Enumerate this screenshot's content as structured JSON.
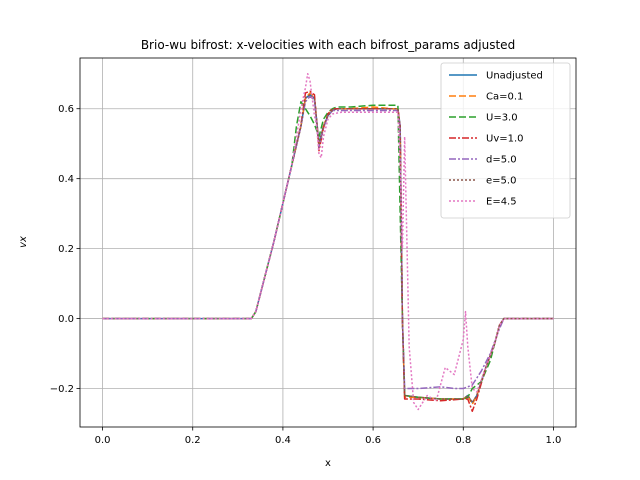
{
  "chart_data": {
    "type": "line",
    "title": "Brio-wu bifrost: x-velocities with each bifrost_params adjusted",
    "xlabel": "x",
    "ylabel": "vx",
    "xlim": [
      -0.05,
      1.05
    ],
    "ylim": [
      -0.31,
      0.745
    ],
    "xticks": [
      0.0,
      0.2,
      0.4,
      0.6,
      0.8,
      1.0
    ],
    "xtick_labels": [
      "0.0",
      "0.2",
      "0.4",
      "0.6",
      "0.8",
      "1.0"
    ],
    "yticks": [
      -0.2,
      0.0,
      0.2,
      0.4,
      0.6
    ],
    "ytick_labels": [
      "−0.2",
      "0.0",
      "0.2",
      "0.4",
      "0.6"
    ],
    "grid": true,
    "legend_position": "top-right",
    "series": [
      {
        "name": "Unadjusted",
        "color": "#1f77b4",
        "dash": "solid",
        "x": [
          0.0,
          0.33,
          0.34,
          0.36,
          0.38,
          0.4,
          0.42,
          0.44,
          0.45,
          0.46,
          0.47,
          0.48,
          0.49,
          0.5,
          0.51,
          0.52,
          0.55,
          0.6,
          0.64,
          0.655,
          0.66,
          0.665,
          0.67,
          0.7,
          0.75,
          0.8,
          0.81,
          0.82,
          0.83,
          0.85,
          0.87,
          0.88,
          0.89,
          1.0
        ],
        "y": [
          0.0,
          0.0,
          0.02,
          0.12,
          0.22,
          0.33,
          0.44,
          0.55,
          0.63,
          0.64,
          0.63,
          0.5,
          0.55,
          0.58,
          0.595,
          0.6,
          0.6,
          0.6,
          0.6,
          0.6,
          0.55,
          0.0,
          -0.22,
          -0.225,
          -0.23,
          -0.23,
          -0.22,
          -0.24,
          -0.22,
          -0.14,
          -0.07,
          -0.02,
          0.0,
          0.0
        ]
      },
      {
        "name": "Ca=0.1",
        "color": "#ff7f0e",
        "dash": "7,3",
        "x": [
          0.0,
          0.33,
          0.34,
          0.36,
          0.38,
          0.4,
          0.42,
          0.44,
          0.45,
          0.46,
          0.47,
          0.48,
          0.49,
          0.5,
          0.51,
          0.52,
          0.55,
          0.6,
          0.64,
          0.655,
          0.66,
          0.665,
          0.67,
          0.7,
          0.75,
          0.8,
          0.81,
          0.82,
          0.83,
          0.85,
          0.87,
          0.88,
          0.89,
          1.0
        ],
        "y": [
          0.0,
          0.0,
          0.02,
          0.12,
          0.22,
          0.33,
          0.44,
          0.55,
          0.63,
          0.645,
          0.635,
          0.49,
          0.55,
          0.585,
          0.6,
          0.6,
          0.6,
          0.605,
          0.6,
          0.6,
          0.55,
          0.0,
          -0.225,
          -0.225,
          -0.23,
          -0.23,
          -0.22,
          -0.245,
          -0.22,
          -0.14,
          -0.07,
          -0.02,
          0.0,
          0.0
        ]
      },
      {
        "name": "U=3.0",
        "color": "#2ca02c",
        "dash": "7,3",
        "x": [
          0.0,
          0.33,
          0.34,
          0.36,
          0.38,
          0.4,
          0.42,
          0.43,
          0.44,
          0.45,
          0.46,
          0.47,
          0.48,
          0.49,
          0.5,
          0.51,
          0.52,
          0.55,
          0.6,
          0.64,
          0.655,
          0.665,
          0.67,
          0.7,
          0.75,
          0.78,
          0.8,
          0.81,
          0.82,
          0.84,
          0.86,
          0.88,
          0.89,
          1.0
        ],
        "y": [
          0.0,
          0.0,
          0.02,
          0.12,
          0.22,
          0.33,
          0.44,
          0.55,
          0.62,
          0.6,
          0.58,
          0.555,
          0.52,
          0.57,
          0.59,
          0.6,
          0.605,
          0.605,
          0.61,
          0.61,
          0.61,
          0.0,
          -0.22,
          -0.225,
          -0.23,
          -0.23,
          -0.23,
          -0.225,
          -0.2,
          -0.18,
          -0.12,
          -0.02,
          0.0,
          0.0
        ]
      },
      {
        "name": "Uv=1.0",
        "color": "#d62728",
        "dash": "7,2,2,2",
        "x": [
          0.0,
          0.33,
          0.34,
          0.36,
          0.38,
          0.4,
          0.42,
          0.44,
          0.45,
          0.46,
          0.47,
          0.48,
          0.49,
          0.5,
          0.51,
          0.52,
          0.55,
          0.6,
          0.64,
          0.655,
          0.66,
          0.665,
          0.67,
          0.7,
          0.75,
          0.8,
          0.81,
          0.82,
          0.83,
          0.85,
          0.87,
          0.88,
          0.89,
          1.0
        ],
        "y": [
          0.0,
          0.0,
          0.02,
          0.12,
          0.22,
          0.33,
          0.44,
          0.555,
          0.645,
          0.65,
          0.64,
          0.48,
          0.545,
          0.585,
          0.6,
          0.6,
          0.6,
          0.6,
          0.6,
          0.6,
          0.55,
          0.0,
          -0.23,
          -0.23,
          -0.235,
          -0.23,
          -0.23,
          -0.265,
          -0.23,
          -0.14,
          -0.07,
          -0.02,
          0.0,
          0.0
        ]
      },
      {
        "name": "d=5.0",
        "color": "#9467bd",
        "dash": "7,2,2,2",
        "x": [
          0.0,
          0.33,
          0.34,
          0.36,
          0.38,
          0.4,
          0.42,
          0.44,
          0.45,
          0.46,
          0.47,
          0.48,
          0.49,
          0.5,
          0.51,
          0.52,
          0.55,
          0.6,
          0.64,
          0.655,
          0.66,
          0.665,
          0.67,
          0.68,
          0.7,
          0.75,
          0.78,
          0.8,
          0.82,
          0.84,
          0.86,
          0.88,
          0.89,
          1.0
        ],
        "y": [
          0.0,
          0.0,
          0.02,
          0.12,
          0.22,
          0.33,
          0.44,
          0.55,
          0.62,
          0.635,
          0.625,
          0.49,
          0.545,
          0.58,
          0.595,
          0.595,
          0.595,
          0.595,
          0.595,
          0.595,
          0.55,
          0.0,
          -0.2,
          -0.2,
          -0.2,
          -0.195,
          -0.2,
          -0.2,
          -0.19,
          -0.15,
          -0.1,
          -0.03,
          0.0,
          0.0
        ]
      },
      {
        "name": "e=5.0",
        "color": "#8c564b",
        "dash": "2,2",
        "x": [
          0.0,
          0.33,
          0.34,
          0.36,
          0.38,
          0.4,
          0.42,
          0.44,
          0.45,
          0.46,
          0.47,
          0.48,
          0.49,
          0.5,
          0.51,
          0.52,
          0.55,
          0.6,
          0.64,
          0.655,
          0.66,
          0.665,
          0.67,
          0.7,
          0.75,
          0.8,
          0.81,
          0.82,
          0.83,
          0.85,
          0.87,
          0.88,
          0.89,
          1.0
        ],
        "y": [
          0.0,
          0.0,
          0.02,
          0.12,
          0.22,
          0.33,
          0.44,
          0.55,
          0.63,
          0.64,
          0.63,
          0.5,
          0.55,
          0.58,
          0.595,
          0.6,
          0.6,
          0.6,
          0.6,
          0.6,
          0.55,
          0.0,
          -0.22,
          -0.225,
          -0.23,
          -0.23,
          -0.22,
          -0.24,
          -0.22,
          -0.14,
          -0.07,
          -0.02,
          0.0,
          0.0
        ]
      },
      {
        "name": "E=4.5",
        "color": "#e377c2",
        "dash": "2,2",
        "x": [
          0.0,
          0.33,
          0.34,
          0.36,
          0.38,
          0.4,
          0.42,
          0.43,
          0.44,
          0.45,
          0.455,
          0.46,
          0.47,
          0.475,
          0.48,
          0.485,
          0.49,
          0.5,
          0.51,
          0.53,
          0.56,
          0.6,
          0.62,
          0.64,
          0.655,
          0.66,
          0.665,
          0.67,
          0.675,
          0.68,
          0.69,
          0.7,
          0.72,
          0.74,
          0.76,
          0.78,
          0.79,
          0.8,
          0.805,
          0.81,
          0.82,
          0.83,
          0.85,
          0.87,
          0.88,
          0.89,
          1.0
        ],
        "y": [
          0.0,
          0.0,
          0.02,
          0.12,
          0.22,
          0.33,
          0.44,
          0.52,
          0.6,
          0.66,
          0.7,
          0.68,
          0.58,
          0.55,
          0.47,
          0.46,
          0.52,
          0.57,
          0.585,
          0.59,
          0.59,
          0.59,
          0.59,
          0.59,
          0.59,
          0.44,
          0.2,
          0.52,
          0.22,
          -0.08,
          -0.24,
          -0.26,
          -0.22,
          -0.235,
          -0.14,
          -0.16,
          -0.11,
          -0.06,
          0.02,
          -0.08,
          -0.2,
          -0.21,
          -0.14,
          -0.07,
          -0.02,
          0.0,
          0.0
        ]
      }
    ]
  }
}
